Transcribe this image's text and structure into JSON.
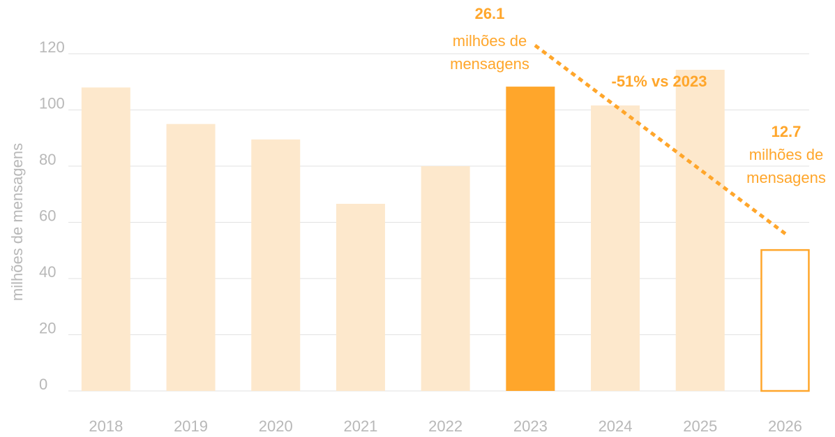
{
  "chart_data": {
    "type": "bar",
    "ylabel": "milhões de mensagens",
    "categories": [
      "2018",
      "2019",
      "2020",
      "2021",
      "2022",
      "2023",
      "2024",
      "2025",
      "2026"
    ],
    "values": [
      108,
      95,
      89.5,
      66.6,
      80,
      108.3,
      101.6,
      114.3,
      50.4
    ],
    "colors": [
      "#fde8cc",
      "#fde8cc",
      "#fde8cc",
      "#fde8cc",
      "#fde8cc",
      "#ffa62b",
      "#fde8cc",
      "#fde8cc",
      "#ffa62b"
    ],
    "styles": [
      "fill",
      "fill",
      "fill",
      "fill",
      "fill",
      "fill",
      "fill",
      "fill",
      "outline"
    ],
    "ylim": [
      0,
      120
    ],
    "yticks": [
      0,
      20,
      40,
      60,
      80,
      100,
      120
    ],
    "grid": true,
    "annotations": [
      {
        "value_text": "26.1",
        "lines": [
          "milhões de",
          "mensagens"
        ]
      },
      {
        "value_text": "12.7",
        "lines": [
          "milhões de",
          "mensagens"
        ]
      },
      {
        "text": "-51% vs 2023"
      }
    ]
  }
}
